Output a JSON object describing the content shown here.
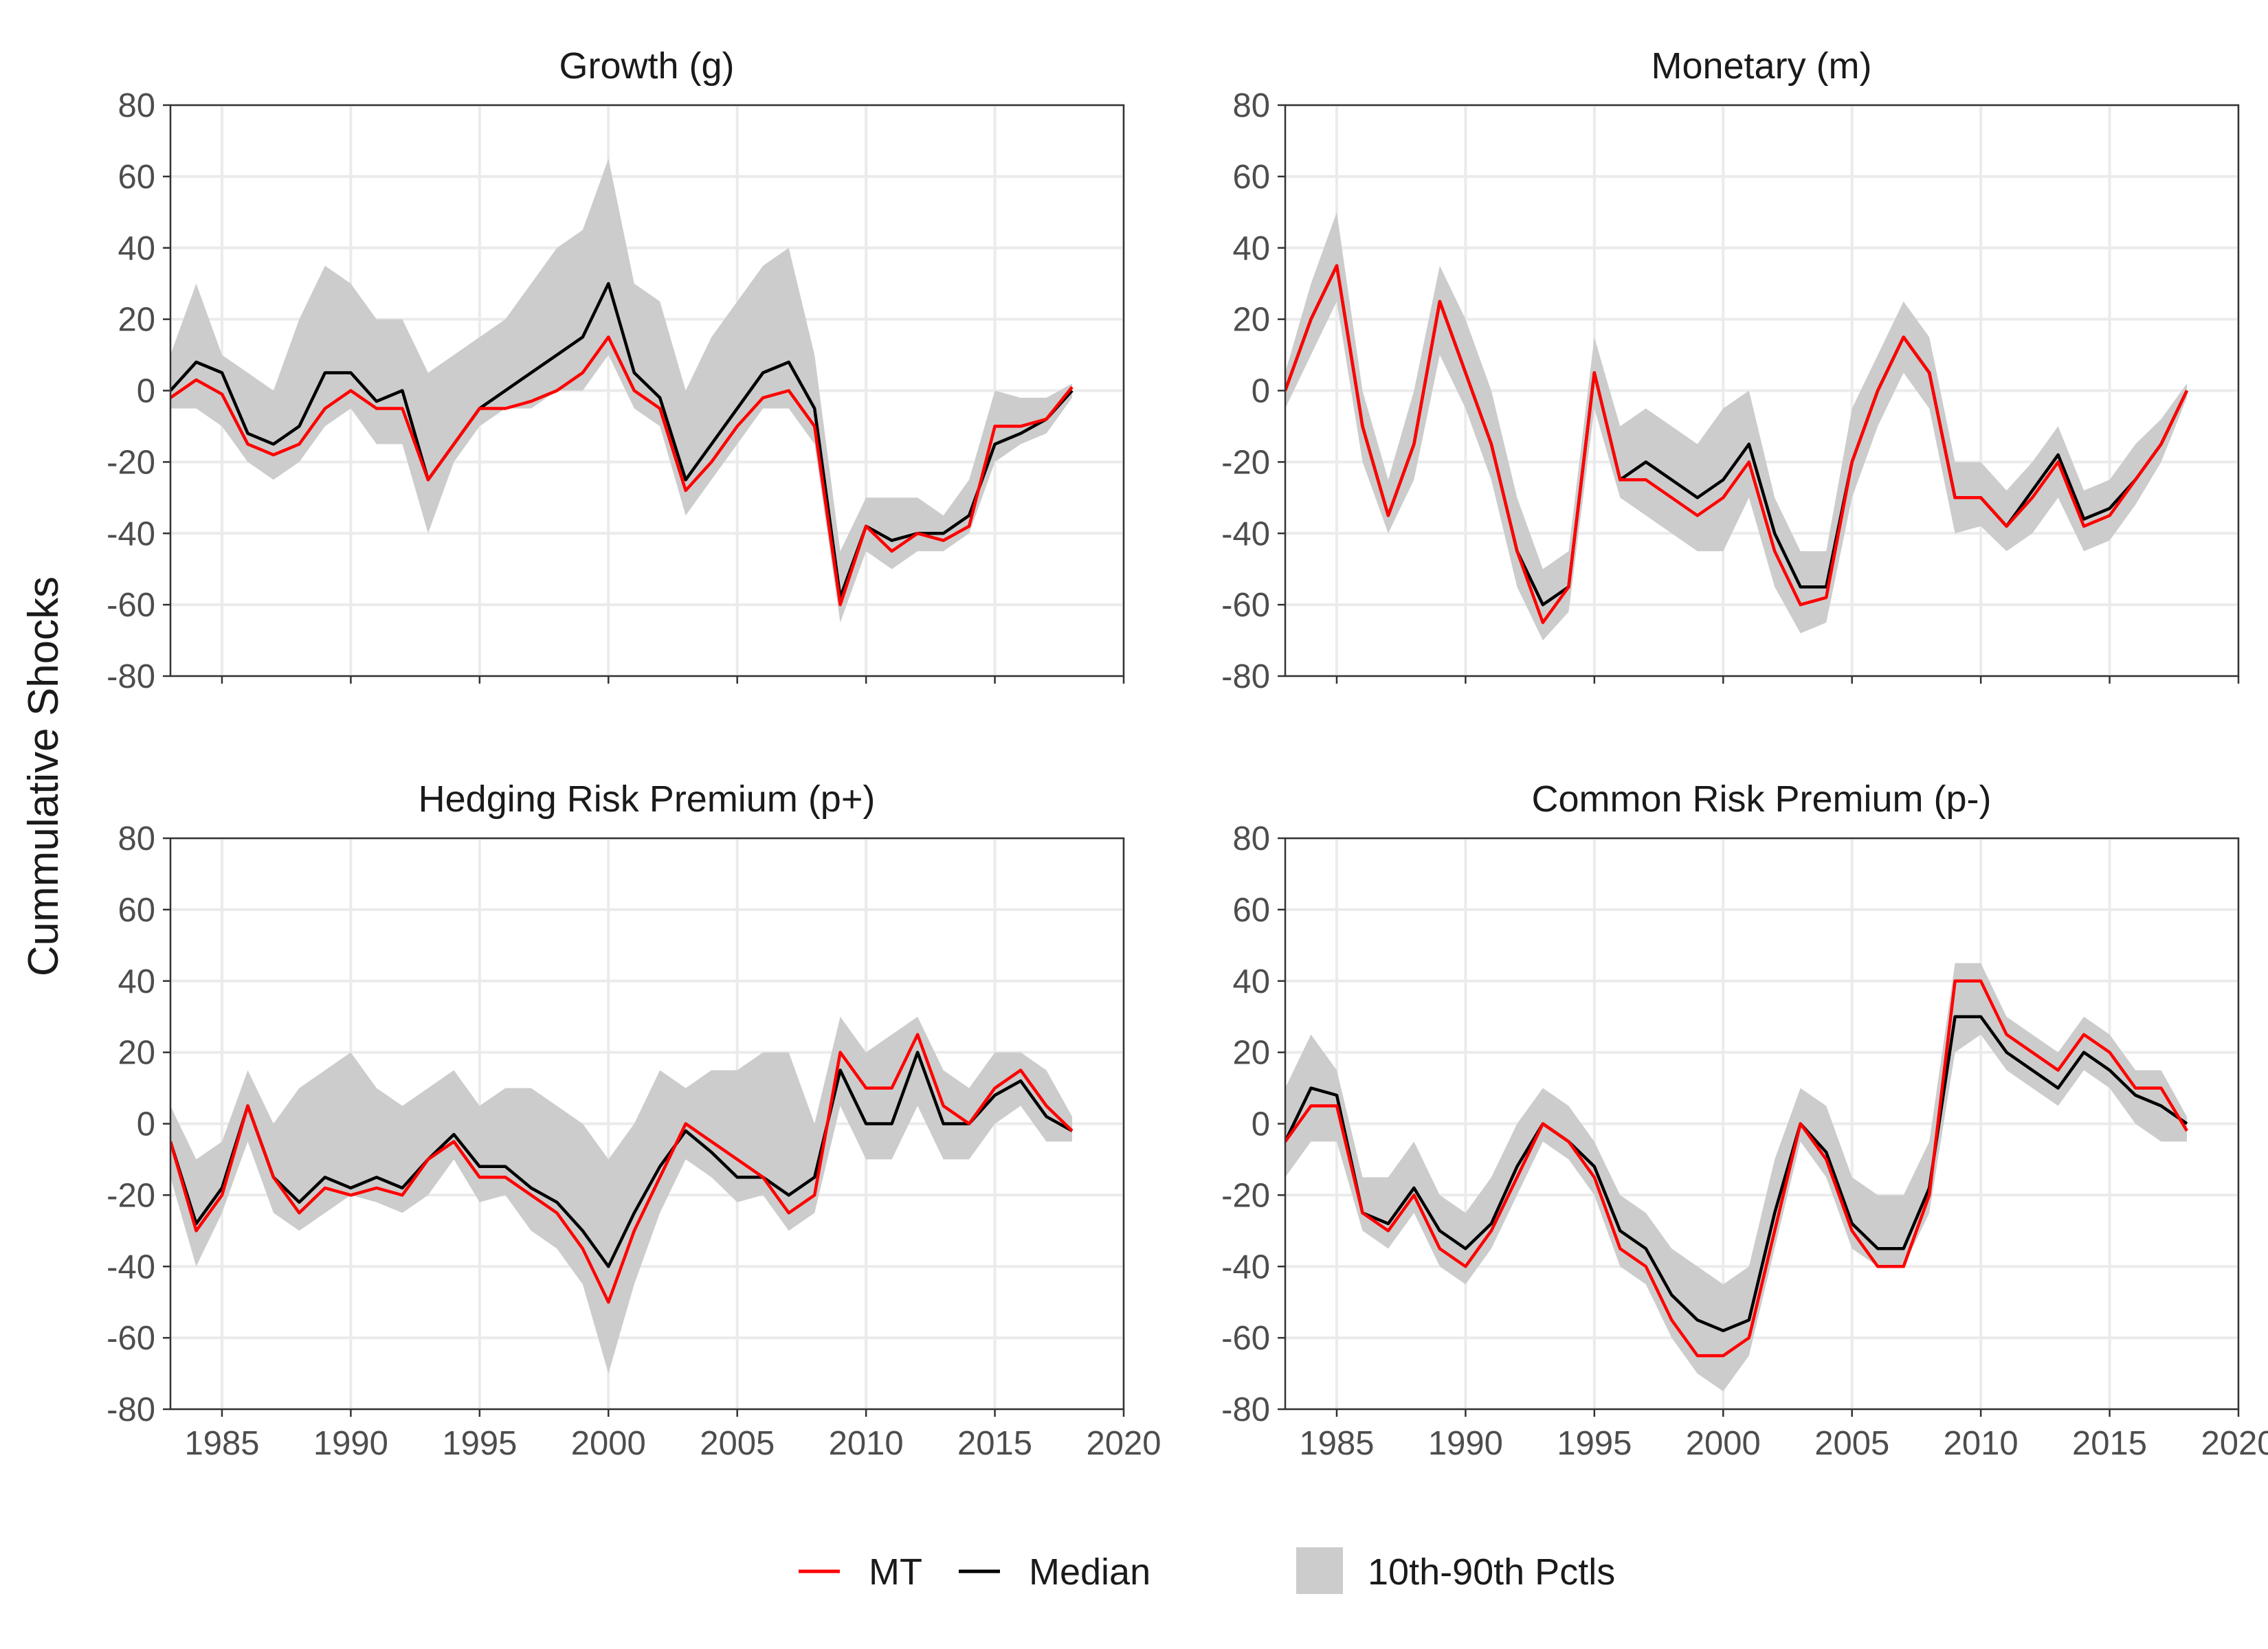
{
  "chart_data": {
    "type": "line",
    "ylabel": "Cummulative Shocks",
    "xlim": [
      1983,
      2020
    ],
    "ylim": [
      -80,
      80
    ],
    "x_ticks": [
      1985,
      1990,
      1995,
      2000,
      2005,
      2010,
      2015,
      2020
    ],
    "y_ticks": [
      -80,
      -60,
      -40,
      -20,
      0,
      20,
      40,
      60,
      80
    ],
    "grid": true,
    "legend": {
      "placement": "bottom",
      "entries": [
        {
          "label": "MT",
          "kind": "line",
          "color": "#ff0000"
        },
        {
          "label": "Median",
          "kind": "line",
          "color": "#000000"
        },
        {
          "label": "10th-90th Pctls",
          "kind": "band",
          "color": "#cccccc"
        }
      ]
    },
    "colors": {
      "mt": "#ff0000",
      "median": "#000000",
      "band": "#cccccc",
      "grid": "#ebebeb"
    },
    "x_tick_labels_shown_on": [
      "Hedging Risk Premium (p+)",
      "Common Risk Premium (p-)"
    ],
    "panels": [
      {
        "title": "Growth (g)",
        "x": [
          1983,
          1984,
          1985,
          1986,
          1987,
          1988,
          1989,
          1990,
          1991,
          1992,
          1993,
          1994,
          1995,
          1996,
          1997,
          1998,
          1999,
          2000,
          2001,
          2002,
          2003,
          2004,
          2005,
          2006,
          2007,
          2008,
          2009,
          2010,
          2011,
          2012,
          2013,
          2014,
          2015,
          2016,
          2017,
          2018
        ],
        "mt": [
          -2,
          3,
          -1,
          -15,
          -18,
          -15,
          -5,
          0,
          -5,
          -5,
          -25,
          -15,
          -5,
          -5,
          -3,
          0,
          5,
          15,
          0,
          -5,
          -28,
          -20,
          -10,
          -2,
          0,
          -10,
          -60,
          -38,
          -45,
          -40,
          -42,
          -38,
          -10,
          -10,
          -8,
          1
        ],
        "median": [
          0,
          8,
          5,
          -12,
          -15,
          -10,
          5,
          5,
          -3,
          0,
          -25,
          -15,
          -5,
          0,
          5,
          10,
          15,
          30,
          5,
          -2,
          -25,
          -15,
          -5,
          5,
          8,
          -5,
          -58,
          -38,
          -42,
          -40,
          -40,
          -35,
          -15,
          -12,
          -8,
          0
        ],
        "band": [
          [
            -5,
            10
          ],
          [
            -5,
            30
          ],
          [
            -10,
            10
          ],
          [
            -20,
            5
          ],
          [
            -25,
            0
          ],
          [
            -20,
            20
          ],
          [
            -10,
            35
          ],
          [
            -5,
            30
          ],
          [
            -15,
            20
          ],
          [
            -15,
            20
          ],
          [
            -40,
            5
          ],
          [
            -20,
            10
          ],
          [
            -10,
            15
          ],
          [
            -5,
            20
          ],
          [
            -5,
            30
          ],
          [
            0,
            40
          ],
          [
            0,
            45
          ],
          [
            10,
            65
          ],
          [
            -5,
            30
          ],
          [
            -10,
            25
          ],
          [
            -35,
            0
          ],
          [
            -25,
            15
          ],
          [
            -15,
            25
          ],
          [
            -5,
            35
          ],
          [
            -5,
            40
          ],
          [
            -15,
            10
          ],
          [
            -65,
            -45
          ],
          [
            -45,
            -30
          ],
          [
            -50,
            -30
          ],
          [
            -45,
            -30
          ],
          [
            -45,
            -35
          ],
          [
            -40,
            -25
          ],
          [
            -20,
            0
          ],
          [
            -15,
            -2
          ],
          [
            -12,
            -2
          ],
          [
            -2,
            2
          ]
        ]
      },
      {
        "title": "Monetary (m)",
        "x": [
          1983,
          1984,
          1985,
          1986,
          1987,
          1988,
          1989,
          1990,
          1991,
          1992,
          1993,
          1994,
          1995,
          1996,
          1997,
          1998,
          1999,
          2000,
          2001,
          2002,
          2003,
          2004,
          2005,
          2006,
          2007,
          2008,
          2009,
          2010,
          2011,
          2012,
          2013,
          2014,
          2015,
          2016,
          2017,
          2018
        ],
        "mt": [
          0,
          20,
          35,
          -10,
          -35,
          -15,
          25,
          5,
          -15,
          -45,
          -65,
          -55,
          5,
          -25,
          -25,
          -30,
          -35,
          -30,
          -20,
          -45,
          -60,
          -58,
          -20,
          0,
          15,
          5,
          -30,
          -30,
          -38,
          -30,
          -20,
          -38,
          -35,
          -25,
          -15,
          0
        ],
        "median": [
          0,
          20,
          35,
          -10,
          -35,
          -15,
          25,
          5,
          -15,
          -45,
          -60,
          -55,
          5,
          -25,
          -20,
          -25,
          -30,
          -25,
          -15,
          -40,
          -55,
          -55,
          -20,
          0,
          15,
          5,
          -30,
          -30,
          -38,
          -28,
          -18,
          -36,
          -33,
          -25,
          -15,
          0
        ],
        "band": [
          [
            -5,
            5
          ],
          [
            10,
            30
          ],
          [
            25,
            50
          ],
          [
            -20,
            0
          ],
          [
            -40,
            -25
          ],
          [
            -25,
            0
          ],
          [
            10,
            35
          ],
          [
            -5,
            20
          ],
          [
            -25,
            0
          ],
          [
            -55,
            -30
          ],
          [
            -70,
            -50
          ],
          [
            -62,
            -45
          ],
          [
            -5,
            15
          ],
          [
            -30,
            -10
          ],
          [
            -35,
            -5
          ],
          [
            -40,
            -10
          ],
          [
            -45,
            -15
          ],
          [
            -45,
            -5
          ],
          [
            -30,
            0
          ],
          [
            -55,
            -30
          ],
          [
            -68,
            -45
          ],
          [
            -65,
            -45
          ],
          [
            -30,
            -5
          ],
          [
            -10,
            10
          ],
          [
            5,
            25
          ],
          [
            -5,
            15
          ],
          [
            -40,
            -20
          ],
          [
            -38,
            -20
          ],
          [
            -45,
            -28
          ],
          [
            -40,
            -20
          ],
          [
            -30,
            -10
          ],
          [
            -45,
            -28
          ],
          [
            -42,
            -25
          ],
          [
            -32,
            -15
          ],
          [
            -20,
            -8
          ],
          [
            -2,
            2
          ]
        ]
      },
      {
        "title": "Hedging Risk Premium (p+)",
        "x": [
          1983,
          1984,
          1985,
          1986,
          1987,
          1988,
          1989,
          1990,
          1991,
          1992,
          1993,
          1994,
          1995,
          1996,
          1997,
          1998,
          1999,
          2000,
          2001,
          2002,
          2003,
          2004,
          2005,
          2006,
          2007,
          2008,
          2009,
          2010,
          2011,
          2012,
          2013,
          2014,
          2015,
          2016,
          2017,
          2018
        ],
        "mt": [
          -5,
          -30,
          -20,
          5,
          -15,
          -25,
          -18,
          -20,
          -18,
          -20,
          -10,
          -5,
          -15,
          -15,
          -20,
          -25,
          -35,
          -50,
          -30,
          -15,
          0,
          -5,
          -10,
          -15,
          -25,
          -20,
          20,
          10,
          10,
          25,
          5,
          0,
          10,
          15,
          5,
          -2
        ],
        "median": [
          -5,
          -28,
          -18,
          5,
          -15,
          -22,
          -15,
          -18,
          -15,
          -18,
          -10,
          -3,
          -12,
          -12,
          -18,
          -22,
          -30,
          -40,
          -25,
          -12,
          -2,
          -8,
          -15,
          -15,
          -20,
          -15,
          15,
          0,
          0,
          20,
          0,
          0,
          8,
          12,
          2,
          -2
        ],
        "band": [
          [
            -15,
            5
          ],
          [
            -40,
            -10
          ],
          [
            -25,
            -5
          ],
          [
            -5,
            15
          ],
          [
            -25,
            0
          ],
          [
            -30,
            10
          ],
          [
            -25,
            15
          ],
          [
            -20,
            20
          ],
          [
            -22,
            10
          ],
          [
            -25,
            5
          ],
          [
            -20,
            10
          ],
          [
            -10,
            15
          ],
          [
            -22,
            5
          ],
          [
            -20,
            10
          ],
          [
            -30,
            10
          ],
          [
            -35,
            5
          ],
          [
            -45,
            0
          ],
          [
            -70,
            -10
          ],
          [
            -45,
            0
          ],
          [
            -25,
            15
          ],
          [
            -10,
            10
          ],
          [
            -15,
            15
          ],
          [
            -22,
            15
          ],
          [
            -20,
            20
          ],
          [
            -30,
            20
          ],
          [
            -25,
            0
          ],
          [
            5,
            30
          ],
          [
            -10,
            20
          ],
          [
            -10,
            25
          ],
          [
            5,
            30
          ],
          [
            -10,
            15
          ],
          [
            -10,
            10
          ],
          [
            0,
            20
          ],
          [
            5,
            20
          ],
          [
            -5,
            15
          ],
          [
            -5,
            2
          ]
        ]
      },
      {
        "title": "Common Risk Premium (p-)",
        "x": [
          1983,
          1984,
          1985,
          1986,
          1987,
          1988,
          1989,
          1990,
          1991,
          1992,
          1993,
          1994,
          1995,
          1996,
          1997,
          1998,
          1999,
          2000,
          2001,
          2002,
          2003,
          2004,
          2005,
          2006,
          2007,
          2008,
          2009,
          2010,
          2011,
          2012,
          2013,
          2014,
          2015,
          2016,
          2017,
          2018
        ],
        "mt": [
          -5,
          5,
          5,
          -25,
          -30,
          -20,
          -35,
          -40,
          -30,
          -15,
          0,
          -5,
          -15,
          -35,
          -40,
          -55,
          -65,
          -65,
          -60,
          -30,
          0,
          -10,
          -30,
          -40,
          -40,
          -20,
          40,
          40,
          25,
          20,
          15,
          25,
          20,
          10,
          10,
          -2
        ],
        "median": [
          -5,
          10,
          8,
          -25,
          -28,
          -18,
          -30,
          -35,
          -28,
          -12,
          0,
          -5,
          -12,
          -30,
          -35,
          -48,
          -55,
          -58,
          -55,
          -25,
          0,
          -8,
          -28,
          -35,
          -35,
          -18,
          30,
          30,
          20,
          15,
          10,
          20,
          15,
          8,
          5,
          0
        ],
        "band": [
          [
            -15,
            10
          ],
          [
            -5,
            25
          ],
          [
            -5,
            15
          ],
          [
            -30,
            -15
          ],
          [
            -35,
            -15
          ],
          [
            -25,
            -5
          ],
          [
            -40,
            -20
          ],
          [
            -45,
            -25
          ],
          [
            -35,
            -15
          ],
          [
            -20,
            0
          ],
          [
            -5,
            10
          ],
          [
            -10,
            5
          ],
          [
            -20,
            -5
          ],
          [
            -40,
            -20
          ],
          [
            -45,
            -25
          ],
          [
            -60,
            -35
          ],
          [
            -70,
            -40
          ],
          [
            -75,
            -45
          ],
          [
            -65,
            -40
          ],
          [
            -35,
            -10
          ],
          [
            -5,
            10
          ],
          [
            -15,
            5
          ],
          [
            -35,
            -15
          ],
          [
            -40,
            -20
          ],
          [
            -40,
            -20
          ],
          [
            -25,
            -5
          ],
          [
            20,
            45
          ],
          [
            25,
            45
          ],
          [
            15,
            30
          ],
          [
            10,
            25
          ],
          [
            5,
            20
          ],
          [
            15,
            30
          ],
          [
            10,
            25
          ],
          [
            0,
            15
          ],
          [
            -5,
            15
          ],
          [
            -5,
            2
          ]
        ]
      }
    ]
  }
}
